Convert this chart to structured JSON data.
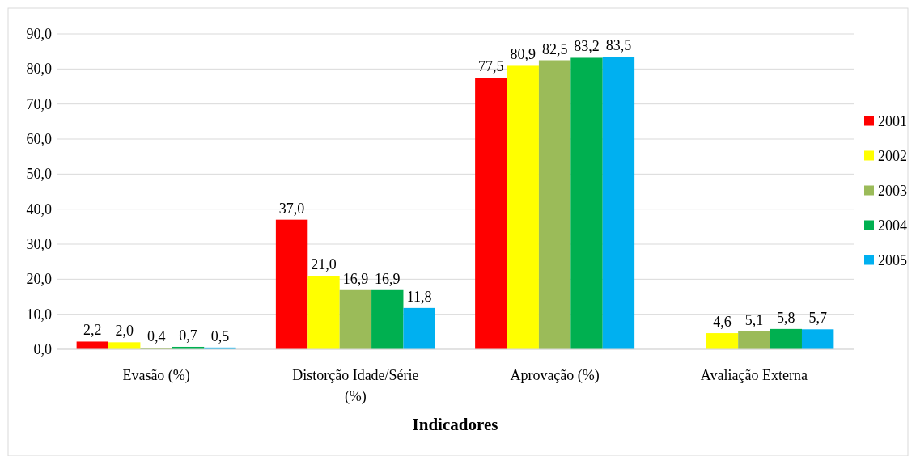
{
  "chart_data": {
    "type": "bar",
    "xlabel": "Indicadores",
    "categories": [
      "Evasão (%)",
      "Distorção Idade/Série (%)",
      "Aprovação (%)",
      "Avaliação Externa"
    ],
    "series": [
      {
        "name": "2001",
        "color": "#ff0000",
        "values": [
          2.2,
          37.0,
          77.5,
          null
        ],
        "value_labels": [
          "2,2",
          "37,0",
          "77,5",
          null
        ]
      },
      {
        "name": "2002",
        "color": "#ffff00",
        "values": [
          2.0,
          21.0,
          80.9,
          4.6
        ],
        "value_labels": [
          "2,0",
          "21,0",
          "80,9",
          "4,6"
        ]
      },
      {
        "name": "2003",
        "color": "#9bbb59",
        "values": [
          0.4,
          16.9,
          82.5,
          5.1
        ],
        "value_labels": [
          "0,4",
          "16,9",
          "82,5",
          "5,1"
        ]
      },
      {
        "name": "2004",
        "color": "#00b050",
        "values": [
          0.7,
          16.9,
          83.2,
          5.8
        ],
        "value_labels": [
          "0,7",
          "16,9",
          "83,2",
          "5,8"
        ]
      },
      {
        "name": "2005",
        "color": "#00b0f0",
        "values": [
          0.5,
          11.8,
          83.5,
          5.7
        ],
        "value_labels": [
          "0,5",
          "11,8",
          "83,5",
          "5,7"
        ]
      }
    ],
    "ylim": [
      0,
      90
    ],
    "yticks": [
      {
        "value": 0,
        "label": "0,0"
      },
      {
        "value": 10,
        "label": "10,0"
      },
      {
        "value": 20,
        "label": "20,0"
      },
      {
        "value": 30,
        "label": "30,0"
      },
      {
        "value": 40,
        "label": "40,0"
      },
      {
        "value": 50,
        "label": "50,0"
      },
      {
        "value": 60,
        "label": "60,0"
      },
      {
        "value": 70,
        "label": "70,0"
      },
      {
        "value": 80,
        "label": "80,0"
      },
      {
        "value": 90,
        "label": "90,0"
      }
    ],
    "grid": "y",
    "legend": "right"
  }
}
